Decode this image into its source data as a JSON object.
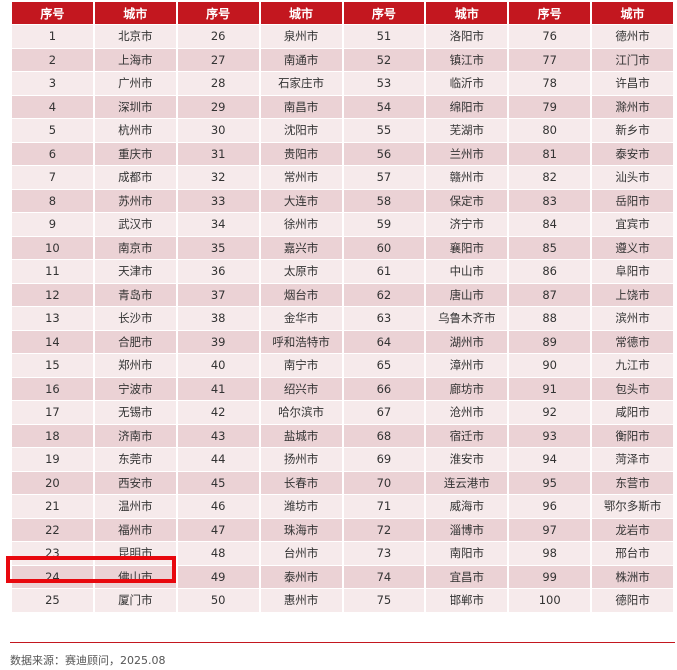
{
  "headers": [
    "序号",
    "城市",
    "序号",
    "城市",
    "序号",
    "城市",
    "序号",
    "城市"
  ],
  "cities": [
    "北京市",
    "上海市",
    "广州市",
    "深圳市",
    "杭州市",
    "重庆市",
    "成都市",
    "苏州市",
    "武汉市",
    "南京市",
    "天津市",
    "青岛市",
    "长沙市",
    "合肥市",
    "郑州市",
    "宁波市",
    "无锡市",
    "济南市",
    "东莞市",
    "西安市",
    "温州市",
    "福州市",
    "昆明市",
    "佛山市",
    "厦门市",
    "泉州市",
    "南通市",
    "石家庄市",
    "南昌市",
    "沈阳市",
    "贵阳市",
    "常州市",
    "大连市",
    "徐州市",
    "嘉兴市",
    "太原市",
    "烟台市",
    "金华市",
    "呼和浩特市",
    "南宁市",
    "绍兴市",
    "哈尔滨市",
    "盐城市",
    "扬州市",
    "长春市",
    "潍坊市",
    "珠海市",
    "台州市",
    "泰州市",
    "惠州市",
    "洛阳市",
    "镇江市",
    "临沂市",
    "绵阳市",
    "芜湖市",
    "兰州市",
    "赣州市",
    "保定市",
    "济宁市",
    "襄阳市",
    "中山市",
    "唐山市",
    "乌鲁木齐市",
    "湖州市",
    "漳州市",
    "廊坊市",
    "沧州市",
    "宿迁市",
    "淮安市",
    "连云港市",
    "威海市",
    "淄博市",
    "南阳市",
    "宜昌市",
    "邯郸市",
    "德州市",
    "江门市",
    "许昌市",
    "滁州市",
    "新乡市",
    "泰安市",
    "汕头市",
    "岳阳市",
    "宜宾市",
    "遵义市",
    "阜阳市",
    "上饶市",
    "滨州市",
    "常德市",
    "九江市",
    "包头市",
    "咸阳市",
    "衡阳市",
    "菏泽市",
    "东营市",
    "鄂尔多斯市",
    "龙岩市",
    "邢台市",
    "株洲市",
    "德阳市"
  ],
  "highlighted_rank": 23,
  "source": "数据来源：赛迪顾问，2025.08",
  "colors": {
    "header": "#c3171f",
    "highlight": "#e8080e"
  }
}
